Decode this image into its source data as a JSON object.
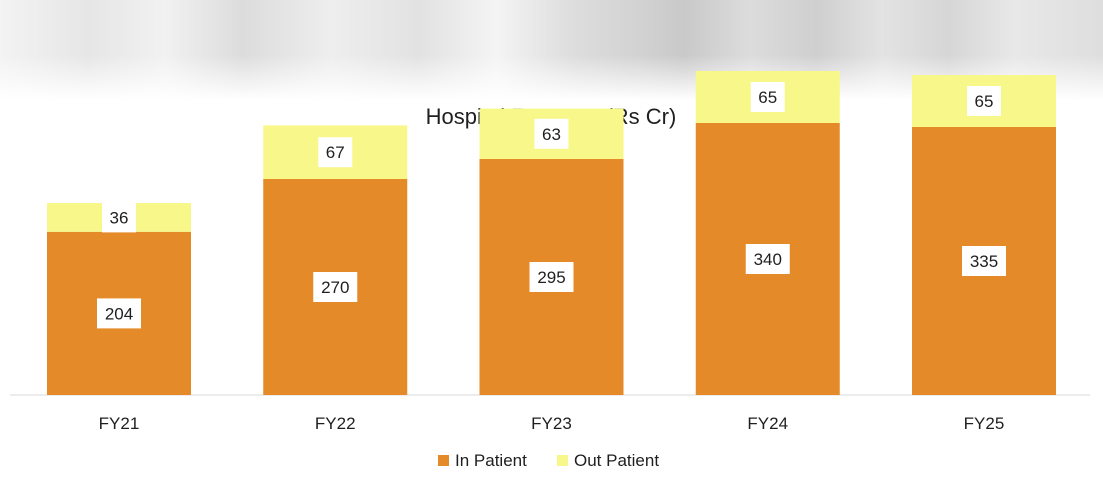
{
  "chart_data": {
    "type": "bar",
    "stacked": true,
    "title": "Hospital Revenue (Rs Cr)",
    "categories": [
      "FY21",
      "FY22",
      "FY23",
      "FY24",
      "FY25"
    ],
    "series": [
      {
        "name": "In Patient",
        "values": [
          204,
          270,
          295,
          340,
          335
        ],
        "color": "#e48a28"
      },
      {
        "name": "Out Patient",
        "values": [
          36,
          67,
          63,
          65,
          65
        ],
        "color": "#f7f78a"
      }
    ],
    "xlabel": "",
    "ylabel": "",
    "ylim": [
      0,
      410
    ],
    "grid": false,
    "legend": "bottom-center",
    "data_labels": true
  }
}
